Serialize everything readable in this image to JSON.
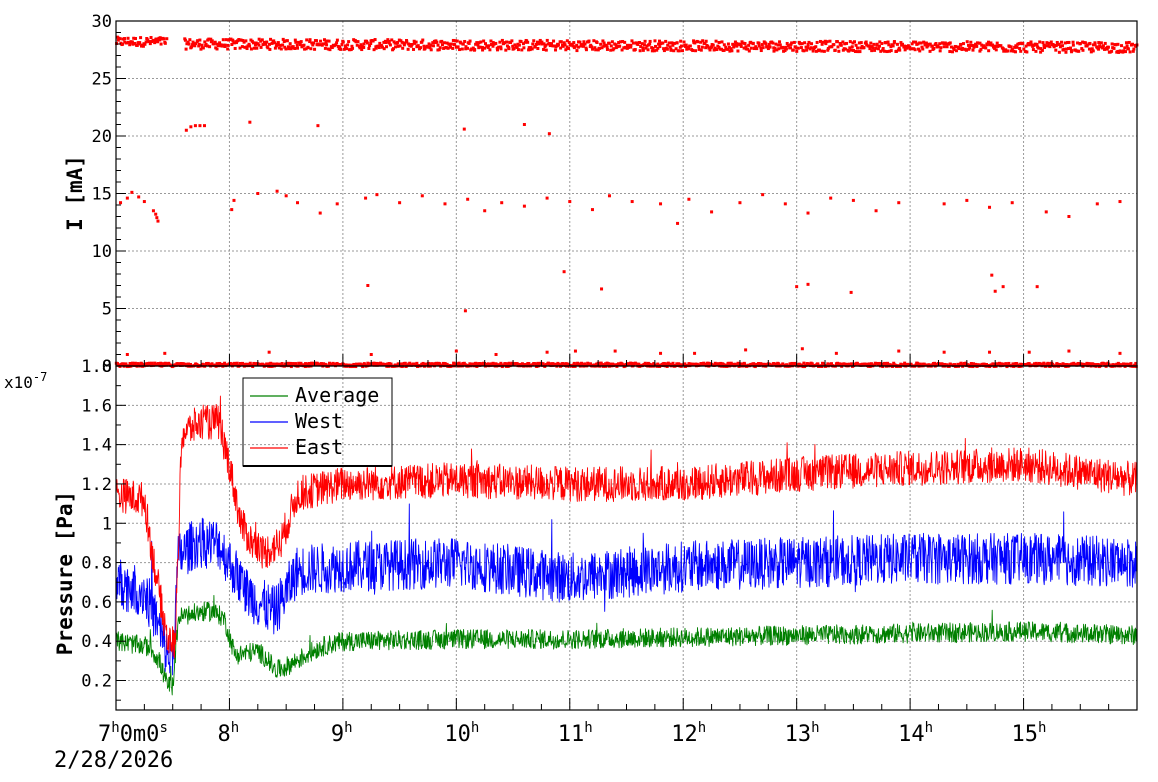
{
  "chart_data": [
    {
      "type": "scatter",
      "ylabel": "I [mA]",
      "ylim": [
        0,
        30
      ],
      "yticks": [
        0,
        5,
        10,
        15,
        20,
        25,
        30
      ],
      "grid": true,
      "x_range_hours": [
        7,
        16
      ],
      "series": [
        {
          "color": "#ff0000",
          "bands": [
            {
              "x_from": 7.0,
              "x_to": 7.45,
              "y": 28.2,
              "spread": 0.4
            },
            {
              "x_from": 7.6,
              "x_to": 16.0,
              "y_start": 28.0,
              "y_end": 27.7,
              "spread": 0.45
            },
            {
              "x_from": 7.0,
              "x_to": 16.0,
              "y": 0.1,
              "spread": 0.15
            }
          ],
          "points": [
            [
              7.62,
              20.5
            ],
            [
              7.66,
              20.8
            ],
            [
              7.7,
              20.9
            ],
            [
              7.74,
              20.9
            ],
            [
              7.78,
              20.9
            ],
            [
              8.18,
              21.2
            ],
            [
              8.78,
              20.9
            ],
            [
              10.07,
              20.6
            ],
            [
              10.6,
              21.0
            ],
            [
              10.82,
              20.2
            ],
            [
              7.04,
              14.2
            ],
            [
              7.1,
              14.6
            ],
            [
              7.14,
              15.1
            ],
            [
              7.2,
              14.7
            ],
            [
              7.25,
              14.3
            ],
            [
              7.33,
              13.5
            ],
            [
              7.35,
              13.2
            ],
            [
              7.36,
              12.9
            ],
            [
              7.37,
              12.6
            ],
            [
              8.02,
              13.6
            ],
            [
              8.04,
              14.4
            ],
            [
              8.25,
              15.0
            ],
            [
              8.42,
              15.2
            ],
            [
              8.5,
              14.8
            ],
            [
              8.6,
              14.2
            ],
            [
              8.8,
              13.3
            ],
            [
              8.95,
              14.1
            ],
            [
              9.2,
              14.6
            ],
            [
              9.3,
              14.9
            ],
            [
              9.5,
              14.2
            ],
            [
              9.7,
              14.8
            ],
            [
              9.9,
              14.1
            ],
            [
              10.1,
              14.5
            ],
            [
              10.25,
              13.5
            ],
            [
              10.4,
              14.2
            ],
            [
              10.6,
              13.9
            ],
            [
              10.8,
              14.6
            ],
            [
              11.0,
              14.3
            ],
            [
              11.2,
              13.6
            ],
            [
              11.35,
              14.8
            ],
            [
              11.55,
              14.3
            ],
            [
              11.8,
              14.1
            ],
            [
              11.95,
              12.4
            ],
            [
              12.05,
              14.5
            ],
            [
              12.25,
              13.4
            ],
            [
              12.5,
              14.2
            ],
            [
              12.7,
              14.9
            ],
            [
              12.9,
              14.1
            ],
            [
              13.1,
              13.3
            ],
            [
              13.3,
              14.6
            ],
            [
              13.5,
              14.4
            ],
            [
              13.7,
              13.5
            ],
            [
              13.9,
              14.2
            ],
            [
              14.3,
              14.1
            ],
            [
              14.5,
              14.4
            ],
            [
              14.7,
              13.8
            ],
            [
              14.9,
              14.2
            ],
            [
              15.2,
              13.4
            ],
            [
              15.4,
              13.0
            ],
            [
              15.65,
              14.1
            ],
            [
              15.85,
              14.3
            ],
            [
              9.22,
              7.0
            ],
            [
              10.08,
              4.8
            ],
            [
              10.95,
              8.2
            ],
            [
              11.28,
              6.7
            ],
            [
              13.0,
              6.9
            ],
            [
              13.1,
              7.1
            ],
            [
              13.48,
              6.4
            ],
            [
              14.72,
              7.9
            ],
            [
              14.75,
              6.5
            ],
            [
              14.82,
              6.9
            ],
            [
              15.12,
              6.9
            ],
            [
              7.1,
              1.0
            ],
            [
              7.43,
              1.1
            ],
            [
              8.35,
              1.2
            ],
            [
              9.25,
              1.0
            ],
            [
              10.0,
              1.3
            ],
            [
              10.35,
              1.0
            ],
            [
              10.8,
              1.2
            ],
            [
              11.05,
              1.3
            ],
            [
              11.4,
              1.3
            ],
            [
              11.8,
              1.1
            ],
            [
              12.1,
              1.1
            ],
            [
              12.55,
              1.4
            ],
            [
              13.05,
              1.5
            ],
            [
              13.35,
              1.1
            ],
            [
              13.9,
              1.3
            ],
            [
              14.3,
              1.2
            ],
            [
              14.7,
              1.2
            ],
            [
              15.05,
              1.2
            ],
            [
              15.4,
              1.3
            ],
            [
              15.85,
              1.1
            ]
          ]
        }
      ]
    },
    {
      "type": "line",
      "ylabel": "Pressure [Pa]",
      "multiplier": "x10",
      "multiplier_exp": "-7",
      "ylim": [
        0.05,
        1.8
      ],
      "yticks": [
        0.2,
        0.4,
        0.6,
        0.8,
        1,
        1.2,
        1.4,
        1.6,
        1.8
      ],
      "grid": true,
      "xticks": [
        {
          "h": "7",
          "rest": "0m0s"
        },
        {
          "h": "8",
          "rest": ""
        },
        {
          "h": "9",
          "rest": ""
        },
        {
          "h": "10",
          "rest": ""
        },
        {
          "h": "11",
          "rest": ""
        },
        {
          "h": "12",
          "rest": ""
        },
        {
          "h": "13",
          "rest": ""
        },
        {
          "h": "14",
          "rest": ""
        },
        {
          "h": "15",
          "rest": ""
        }
      ],
      "xtick_hours": [
        7,
        8,
        9,
        10,
        11,
        12,
        13,
        14,
        15
      ],
      "x_range_hours": [
        7,
        16
      ],
      "date_label": "2/28/2026",
      "legend_position": "top-left",
      "series": [
        {
          "name": "Average",
          "color": "#008000",
          "noise": 0.05,
          "points": [
            [
              7.0,
              0.4
            ],
            [
              7.3,
              0.37
            ],
            [
              7.38,
              0.3
            ],
            [
              7.45,
              0.18
            ],
            [
              7.5,
              0.17
            ],
            [
              7.55,
              0.52
            ],
            [
              7.75,
              0.55
            ],
            [
              7.85,
              0.55
            ],
            [
              7.95,
              0.52
            ],
            [
              8.05,
              0.33
            ],
            [
              8.25,
              0.35
            ],
            [
              8.35,
              0.3
            ],
            [
              8.4,
              0.25
            ],
            [
              8.5,
              0.27
            ],
            [
              8.65,
              0.32
            ],
            [
              8.8,
              0.37
            ],
            [
              9.0,
              0.4
            ],
            [
              10.0,
              0.41
            ],
            [
              11.0,
              0.41
            ],
            [
              12.0,
              0.42
            ],
            [
              13.0,
              0.43
            ],
            [
              14.0,
              0.44
            ],
            [
              15.0,
              0.45
            ],
            [
              16.0,
              0.43
            ]
          ]
        },
        {
          "name": "West",
          "color": "#0000ff",
          "noise": 0.13,
          "points": [
            [
              7.0,
              0.7
            ],
            [
              7.25,
              0.65
            ],
            [
              7.35,
              0.52
            ],
            [
              7.45,
              0.33
            ],
            [
              7.5,
              0.32
            ],
            [
              7.55,
              0.83
            ],
            [
              7.7,
              0.9
            ],
            [
              7.9,
              0.9
            ],
            [
              8.05,
              0.75
            ],
            [
              8.15,
              0.65
            ],
            [
              8.25,
              0.6
            ],
            [
              8.4,
              0.55
            ],
            [
              8.5,
              0.65
            ],
            [
              8.6,
              0.76
            ],
            [
              9.0,
              0.78
            ],
            [
              10.0,
              0.8
            ],
            [
              11.0,
              0.72
            ],
            [
              12.0,
              0.78
            ],
            [
              13.0,
              0.8
            ],
            [
              14.0,
              0.82
            ],
            [
              15.0,
              0.82
            ],
            [
              16.0,
              0.8
            ]
          ]
        },
        {
          "name": "East",
          "color": "#ff0000",
          "noise": 0.09,
          "points": [
            [
              7.0,
              1.15
            ],
            [
              7.25,
              1.12
            ],
            [
              7.32,
              0.85
            ],
            [
              7.45,
              0.42
            ],
            [
              7.52,
              0.38
            ],
            [
              7.58,
              1.45
            ],
            [
              7.7,
              1.5
            ],
            [
              7.9,
              1.52
            ],
            [
              8.0,
              1.3
            ],
            [
              8.1,
              1.0
            ],
            [
              8.2,
              0.9
            ],
            [
              8.3,
              0.85
            ],
            [
              8.45,
              0.9
            ],
            [
              8.6,
              1.15
            ],
            [
              9.0,
              1.2
            ],
            [
              10.0,
              1.22
            ],
            [
              11.0,
              1.2
            ],
            [
              12.0,
              1.2
            ],
            [
              13.0,
              1.25
            ],
            [
              14.0,
              1.28
            ],
            [
              15.0,
              1.3
            ],
            [
              16.0,
              1.22
            ]
          ]
        }
      ]
    }
  ]
}
